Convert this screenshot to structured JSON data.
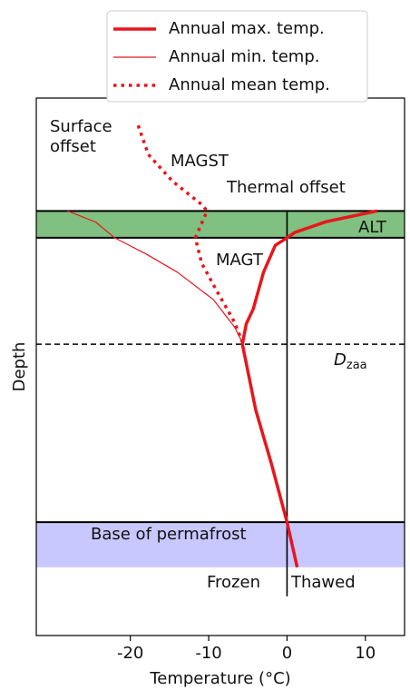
{
  "chart_data": {
    "type": "line",
    "x_label": "Temperature (°C)",
    "y_label": "Depth",
    "xlim": [
      -32,
      15
    ],
    "xticks": [
      -20,
      -10,
      0,
      10
    ],
    "ylim": [
      100,
      0
    ],
    "legend": "top-center",
    "series": [
      {
        "name": "Annual max. temp.",
        "color": "#e8161c",
        "linestyle": "solid",
        "linewidth": 3.5,
        "x": [
          11.5,
          5,
          1,
          0,
          -1.5,
          -3,
          -4.3,
          -5.2,
          -5.7,
          -4,
          -2,
          0,
          1.3
        ],
        "y": [
          21,
          23,
          25,
          26,
          27.4,
          32.4,
          39.2,
          42,
          45.8,
          58,
          68,
          78.9,
          87.3
        ]
      },
      {
        "name": "Annual min. temp.",
        "color": "#e8161c",
        "linestyle": "solid",
        "linewidth": 1.2,
        "x": [
          -28,
          -24.4,
          -22,
          -18,
          -14,
          -9.4,
          -6.7,
          -5.6
        ],
        "y": [
          21,
          23.1,
          26,
          29,
          32.4,
          37.5,
          42.6,
          45.8
        ]
      },
      {
        "name": "Annual mean temp.",
        "color": "#e8161c",
        "linestyle": "dotted",
        "linewidth": 3.5,
        "x": [
          -19,
          -17.7,
          -14.6,
          -10.9,
          -10.2,
          -11.7,
          -10.9,
          -9,
          -6.7,
          -5.6
        ],
        "y": [
          5.1,
          10.5,
          15.5,
          19.8,
          21,
          26,
          30.7,
          35.8,
          41.7,
          45.8
        ]
      }
    ],
    "bands": [
      {
        "label": "ALT",
        "y0": 21,
        "y1": 26,
        "color": "#80c080"
      },
      {
        "label": "Base of permafrost",
        "y0": 78.9,
        "y1": 87.3,
        "color": "#c8c8ff"
      }
    ],
    "dashed_line": {
      "y": 45.8,
      "label": "D",
      "subscript": "zaa"
    },
    "zero_line": {
      "x": 0,
      "y0": 21,
      "y1": 92.7
    },
    "annotations": [
      "Surface",
      "offset",
      "MAGST",
      "Thermal offset",
      "MAGT",
      "Frozen",
      "Thawed"
    ]
  }
}
